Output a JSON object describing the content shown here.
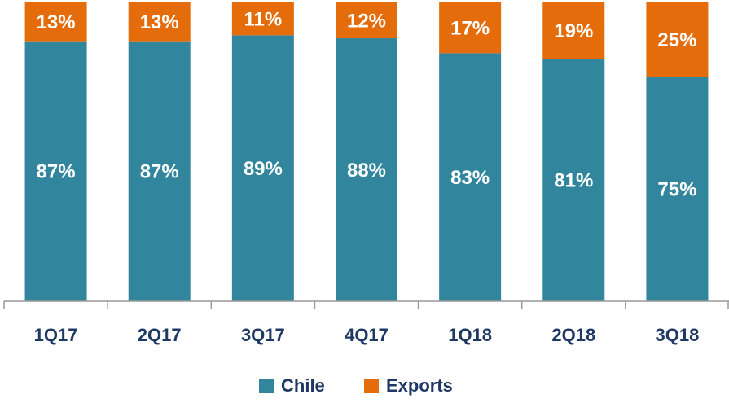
{
  "chart_data": {
    "type": "stacked_bar",
    "categories": [
      "1Q17",
      "2Q17",
      "3Q17",
      "4Q17",
      "1Q18",
      "2Q18",
      "3Q18"
    ],
    "series": [
      {
        "name": "Chile",
        "color": "#31859c",
        "values": [
          87,
          87,
          89,
          88,
          83,
          81,
          75
        ],
        "value_labels": [
          "87%",
          "87%",
          "89%",
          "88%",
          "83%",
          "81%",
          "75%"
        ]
      },
      {
        "name": "Exports",
        "color": "#e46c0a",
        "values": [
          13,
          13,
          11,
          12,
          17,
          19,
          25
        ],
        "value_labels": [
          "13%",
          "13%",
          "11%",
          "12%",
          "17%",
          "19%",
          "25%"
        ]
      }
    ],
    "ylim": [
      0,
      100
    ]
  }
}
